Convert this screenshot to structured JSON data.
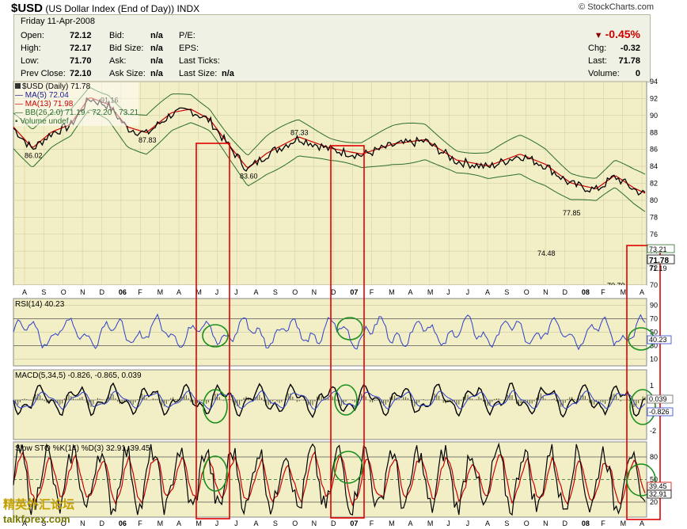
{
  "header": {
    "symbol": "$USD",
    "name": "(US Dollar Index (End of Day))",
    "exchange": "INDX",
    "credit": "© StockCharts.com"
  },
  "quote": {
    "date": "Friday  11-Apr-2008",
    "open_label": "Open:",
    "open": "72.12",
    "high_label": "High:",
    "high": "72.17",
    "low_label": "Low:",
    "low": "71.70",
    "prev_label": "Prev Close:",
    "prev": "72.10",
    "bid_label": "Bid:",
    "bid": "n/a",
    "bidsize_label": "Bid Size:",
    "bidsize": "n/a",
    "ask_label": "Ask:",
    "ask": "n/a",
    "asksize_label": "Ask Size:",
    "asksize": "n/a",
    "pe_label": "P/E:",
    "eps_label": "EPS:",
    "lastticks_label": "Last Ticks:",
    "lastsize_label": "Last Size:",
    "lastsize": "n/a",
    "change_pct": "-0.45%",
    "chg_label": "Chg:",
    "chg": "-0.32",
    "last_label": "Last:",
    "last": "71.78",
    "volume_label": "Volume:",
    "volume": "0"
  },
  "legend": {
    "main": "$USD (Daily) 71.78",
    "ma5": "MA(5) 72.04",
    "ma13": "MA(13) 71.98",
    "bb": "BB(26,2.0) 71.19 - 72.20 - 73.21",
    "volume": "Volume undef"
  },
  "rsi_label": "RSI(14) 40.23",
  "macd_label": "MACD(5,34,5) -0.826, -0.865, 0.039",
  "sto_label": "Slow STO %K(14) %D(3) 32.91, 39.45",
  "watermark": "talkforex.com",
  "colors": {
    "price": "#000000",
    "ma5": "#1a1a8c",
    "ma13": "#cc0000",
    "bb": "#2a6e2a",
    "rsi": "#2e3fc8",
    "annotation_red": "#e00000",
    "annotation_green": "#1a8f1a",
    "panel_bg": "#f2efc6"
  },
  "chart_data": [
    {
      "type": "line",
      "title": "$USD (Daily) 71.78",
      "x_labels": [
        "A",
        "S",
        "O",
        "N",
        "D",
        "06",
        "F",
        "M",
        "A",
        "M",
        "J",
        "J",
        "A",
        "S",
        "O",
        "N",
        "D",
        "07",
        "F",
        "M",
        "A",
        "M",
        "J",
        "J",
        "A",
        "S",
        "O",
        "N",
        "D",
        "08",
        "F",
        "M",
        "A"
      ],
      "ylim": [
        70,
        94
      ],
      "y_ticks": [
        70,
        72,
        74,
        76,
        78,
        80,
        82,
        84,
        86,
        88,
        90,
        92,
        94
      ],
      "series": [
        {
          "name": "$USD",
          "x": [
            0,
            3,
            6,
            9,
            12,
            15,
            18,
            21,
            25,
            28,
            31,
            34,
            37,
            40,
            45,
            50,
            55,
            60,
            65,
            70,
            75,
            80,
            84,
            88,
            92,
            95,
            98,
            100
          ],
          "values": [
            88.5,
            86.02,
            87.9,
            88.8,
            92.0,
            91.16,
            88.5,
            87.83,
            90.2,
            90.6,
            89.4,
            86.4,
            83.6,
            85.4,
            87.33,
            86.0,
            85.3,
            86.5,
            87.0,
            84.6,
            83.9,
            85.3,
            84.1,
            81.9,
            81.2,
            82.8,
            81.3,
            80.6
          ]
        }
      ],
      "annotations": [
        "91.16",
        "87.83",
        "86.02",
        "83.60",
        "87.33",
        "77.85",
        "74.48",
        "70.70"
      ],
      "right_labels": [
        "73.21",
        "71.78",
        "71.19"
      ]
    },
    {
      "type": "line",
      "title": "RSI(14) 40.23",
      "ylim": [
        0,
        100
      ],
      "y_ticks": [
        10,
        30,
        50,
        70,
        90
      ],
      "last": "40.23"
    },
    {
      "type": "line",
      "title": "MACD(5,34,5) -0.826, -0.865, 0.039",
      "y_ticks": [
        1,
        -2
      ],
      "last": [
        "0.039",
        "-0.826"
      ]
    },
    {
      "type": "line",
      "title": "Slow STO %K(14) %D(3) 32.91, 39.45",
      "y_ticks": [
        80,
        50,
        20
      ],
      "last": [
        "39.45",
        "32.91"
      ]
    }
  ]
}
